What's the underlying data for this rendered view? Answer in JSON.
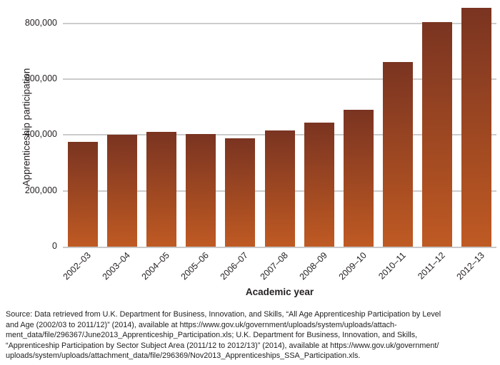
{
  "chart_data": {
    "type": "bar",
    "title": "",
    "categories": [
      "2002–03",
      "2003–04",
      "2004–05",
      "2005–06",
      "2006–07",
      "2007–08",
      "2008–09",
      "2009–10",
      "2010–11",
      "2011–12",
      "2012–13"
    ],
    "values": [
      375000,
      400000,
      411000,
      402000,
      387000,
      416000,
      445000,
      491000,
      662000,
      804000,
      856000
    ],
    "xlabel": "Academic year",
    "ylabel": "Apprenticeship participation",
    "ylim": [
      0,
      880000
    ],
    "yticks": [
      0,
      200000,
      400000,
      600000,
      800000
    ],
    "ytick_labels": [
      "0",
      "200,000",
      "400,000",
      "600,000",
      "800,000"
    ],
    "grid": true,
    "legend_position": "none",
    "bar_color_top": "#7a3421",
    "bar_color_bottom": "#bf5a23",
    "gridline_color": "#cccccc",
    "axis_text_color": "#262123"
  },
  "source": {
    "lines": [
      "Source: Data retrieved from U.K. Department for Business, Innovation, and Skills, “All Age Apprenticeship Participation by Level",
      "and Age (2002/03 to 2011/12)” (2014), available at https://www.gov.uk/government/uploads/system/uploads/attach-",
      "ment_data/file/296367/June2013_Apprenticeship_Participation.xls; U.K. Department for Business, Innovation, and Skills,",
      "“Apprenticeship Participation by Sector Subject Area (2011/12 to 2012/13)” (2014), available at https://www.gov.uk/government/",
      "uploads/system/uploads/attachment_data/file/296369/Nov2013_Apprenticeships_SSA_Participation.xls."
    ]
  }
}
